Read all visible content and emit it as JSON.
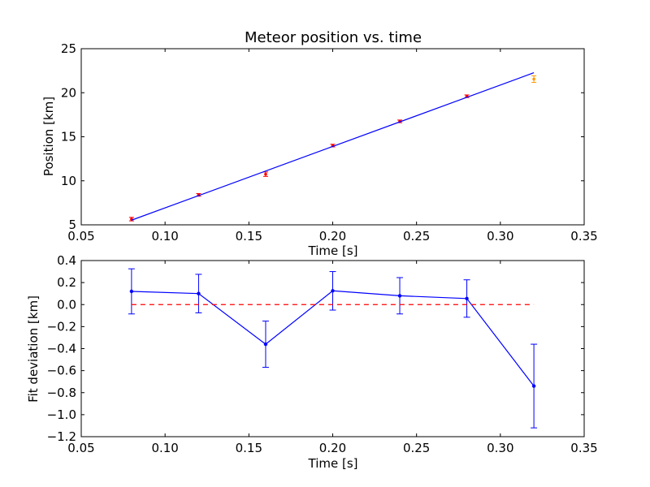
{
  "chart_data": [
    {
      "type": "scatter",
      "title": "Meteor position vs. time",
      "xlabel": "Time [s]",
      "ylabel": "Position [km]",
      "xlim": [
        0.05,
        0.35
      ],
      "ylim": [
        5,
        25
      ],
      "xticks": [
        "0.05",
        "0.10",
        "0.15",
        "0.20",
        "0.25",
        "0.30",
        "0.35"
      ],
      "yticks": [
        "5",
        "10",
        "15",
        "20",
        "25"
      ],
      "series": [
        {
          "kind": "errorbar-points",
          "color": "#ff0000",
          "x": [
            0.08,
            0.12,
            0.16,
            0.2,
            0.24,
            0.28
          ],
          "y": [
            5.65,
            8.4,
            10.75,
            14.0,
            16.75,
            19.6
          ],
          "yerr": [
            0.2,
            0.15,
            0.25,
            0.15,
            0.15,
            0.15
          ]
        },
        {
          "kind": "errorbar-points",
          "color": "#ff9900",
          "x": [
            0.32
          ],
          "y": [
            21.55
          ],
          "yerr": [
            0.38
          ]
        },
        {
          "kind": "line",
          "color": "#0000ff",
          "x": [
            0.08,
            0.32
          ],
          "y": [
            5.53,
            22.27
          ]
        }
      ]
    },
    {
      "type": "line",
      "title": "",
      "xlabel": "Time [s]",
      "ylabel": "Fit deviation [km]",
      "xlim": [
        0.05,
        0.35
      ],
      "ylim": [
        -1.2,
        0.4
      ],
      "xticks": [
        "0.05",
        "0.10",
        "0.15",
        "0.20",
        "0.25",
        "0.30",
        "0.35"
      ],
      "yticks": [
        "0.4",
        "0.2",
        "0.0",
        "−0.2",
        "−0.4",
        "−0.6",
        "−0.8",
        "−1.0",
        "−1.2"
      ],
      "series": [
        {
          "kind": "line-errorbar",
          "color": "#0000ff",
          "x": [
            0.08,
            0.12,
            0.16,
            0.2,
            0.24,
            0.28,
            0.32
          ],
          "y": [
            0.12,
            0.1,
            -0.36,
            0.125,
            0.08,
            0.055,
            -0.74
          ],
          "yerr": [
            0.205,
            0.175,
            0.21,
            0.175,
            0.165,
            0.17,
            0.38
          ]
        },
        {
          "kind": "dashed-line",
          "color": "#ff0000",
          "x": [
            0.08,
            0.32
          ],
          "y": [
            0.0,
            0.0
          ]
        }
      ]
    }
  ]
}
